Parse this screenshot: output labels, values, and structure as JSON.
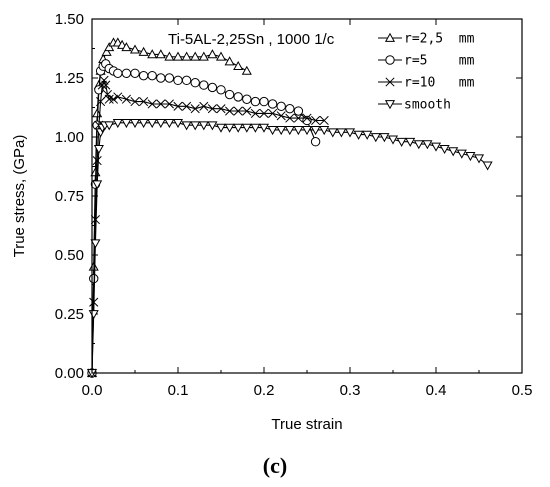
{
  "chart_data": {
    "type": "line",
    "annotation": "Ti-5AL-2,25Sn , 1000 1/c",
    "xlabel": "True strain",
    "ylabel": "True stress, (GPa)",
    "panel_label": "(c)",
    "xlim": [
      0,
      0.5
    ],
    "ylim": [
      0,
      1.5
    ],
    "x_ticks": [
      "0.0",
      "0.1",
      "0.2",
      "0.3",
      "0.4",
      "0.5"
    ],
    "y_ticks": [
      "0.00",
      "0.25",
      "0.50",
      "0.75",
      "1.00",
      "1.25",
      "1.50"
    ],
    "legend_position": "top-right",
    "series": [
      {
        "name": "r=2,5  mm",
        "marker": "triangle-up",
        "x": [
          0.0,
          0.002,
          0.004,
          0.006,
          0.008,
          0.01,
          0.013,
          0.017,
          0.02,
          0.025,
          0.03,
          0.035,
          0.04,
          0.05,
          0.06,
          0.07,
          0.08,
          0.09,
          0.1,
          0.11,
          0.12,
          0.13,
          0.14,
          0.15,
          0.16,
          0.17,
          0.18
        ],
        "y": [
          0.0,
          0.45,
          0.85,
          1.1,
          1.22,
          1.28,
          1.33,
          1.36,
          1.38,
          1.4,
          1.4,
          1.39,
          1.38,
          1.37,
          1.36,
          1.35,
          1.35,
          1.34,
          1.34,
          1.34,
          1.34,
          1.34,
          1.35,
          1.34,
          1.32,
          1.3,
          1.28
        ]
      },
      {
        "name": "r=5    mm",
        "marker": "circle",
        "x": [
          0.0,
          0.002,
          0.004,
          0.006,
          0.008,
          0.01,
          0.013,
          0.016,
          0.02,
          0.025,
          0.03,
          0.04,
          0.05,
          0.06,
          0.07,
          0.08,
          0.09,
          0.1,
          0.11,
          0.12,
          0.13,
          0.14,
          0.15,
          0.16,
          0.17,
          0.18,
          0.19,
          0.2,
          0.21,
          0.22,
          0.23,
          0.24,
          0.25,
          0.26
        ],
        "y": [
          0.0,
          0.4,
          0.8,
          1.05,
          1.2,
          1.28,
          1.3,
          1.31,
          1.29,
          1.28,
          1.27,
          1.27,
          1.27,
          1.26,
          1.26,
          1.25,
          1.25,
          1.24,
          1.24,
          1.23,
          1.22,
          1.21,
          1.2,
          1.18,
          1.17,
          1.16,
          1.15,
          1.15,
          1.14,
          1.13,
          1.12,
          1.11,
          1.07,
          0.98
        ]
      },
      {
        "name": "r=10   mm",
        "marker": "x",
        "x": [
          0.0,
          0.002,
          0.004,
          0.006,
          0.008,
          0.01,
          0.012,
          0.014,
          0.016,
          0.018,
          0.02,
          0.025,
          0.03,
          0.04,
          0.05,
          0.06,
          0.07,
          0.08,
          0.09,
          0.1,
          0.11,
          0.12,
          0.13,
          0.14,
          0.15,
          0.16,
          0.17,
          0.18,
          0.19,
          0.2,
          0.21,
          0.22,
          0.23,
          0.24,
          0.25,
          0.26,
          0.27
        ],
        "y": [
          0.0,
          0.3,
          0.65,
          0.9,
          1.05,
          1.15,
          1.22,
          1.24,
          1.22,
          1.18,
          1.16,
          1.16,
          1.17,
          1.16,
          1.15,
          1.15,
          1.14,
          1.14,
          1.14,
          1.13,
          1.13,
          1.12,
          1.13,
          1.12,
          1.12,
          1.11,
          1.11,
          1.11,
          1.1,
          1.1,
          1.1,
          1.09,
          1.08,
          1.08,
          1.08,
          1.07,
          1.07
        ]
      },
      {
        "name": "smooth",
        "marker": "triangle-down",
        "x": [
          0.0,
          0.002,
          0.004,
          0.006,
          0.008,
          0.01,
          0.012,
          0.015,
          0.02,
          0.03,
          0.04,
          0.05,
          0.06,
          0.07,
          0.08,
          0.09,
          0.1,
          0.11,
          0.12,
          0.13,
          0.14,
          0.15,
          0.16,
          0.17,
          0.18,
          0.19,
          0.2,
          0.21,
          0.22,
          0.23,
          0.24,
          0.25,
          0.26,
          0.27,
          0.28,
          0.29,
          0.3,
          0.31,
          0.32,
          0.33,
          0.34,
          0.35,
          0.36,
          0.37,
          0.38,
          0.39,
          0.4,
          0.41,
          0.42,
          0.43,
          0.44,
          0.45,
          0.46
        ],
        "y": [
          0.0,
          0.25,
          0.55,
          0.8,
          0.95,
          1.02,
          1.04,
          1.05,
          1.05,
          1.06,
          1.06,
          1.06,
          1.06,
          1.06,
          1.06,
          1.06,
          1.06,
          1.05,
          1.05,
          1.05,
          1.05,
          1.04,
          1.04,
          1.04,
          1.04,
          1.04,
          1.04,
          1.03,
          1.03,
          1.03,
          1.03,
          1.03,
          1.03,
          1.03,
          1.02,
          1.02,
          1.02,
          1.01,
          1.01,
          1.0,
          1.0,
          0.99,
          0.98,
          0.98,
          0.97,
          0.97,
          0.96,
          0.95,
          0.94,
          0.93,
          0.92,
          0.91,
          0.88
        ]
      }
    ]
  }
}
